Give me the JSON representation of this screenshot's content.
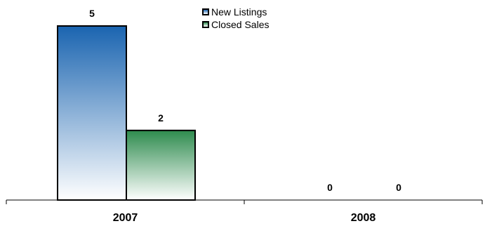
{
  "chart_data": {
    "type": "bar",
    "categories": [
      "2007",
      "2008"
    ],
    "series": [
      {
        "name": "New Listings",
        "values": [
          5,
          0
        ],
        "color": "#1a64b0"
      },
      {
        "name": "Closed Sales",
        "values": [
          2,
          0
        ],
        "color": "#2e8b4e"
      }
    ],
    "ylim": [
      0,
      5
    ],
    "legend_position": "top-center",
    "grid": false
  }
}
